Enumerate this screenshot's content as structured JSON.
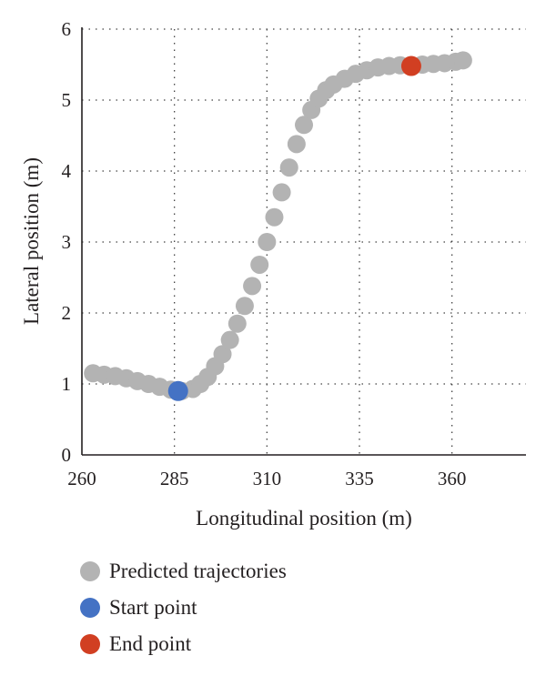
{
  "chart_data": {
    "type": "scatter",
    "xlabel": "Longitudinal position (m)",
    "ylabel": "Lateral position (m)",
    "xlim": [
      260,
      380
    ],
    "ylim": [
      0,
      6
    ],
    "xticks": [
      260,
      285,
      310,
      335,
      360
    ],
    "yticks": [
      0,
      1,
      2,
      3,
      4,
      5,
      6
    ],
    "grid": "dotted",
    "legend_position": "bottom",
    "series": [
      {
        "name": "Predicted trajectories",
        "color": "#b3b3b3",
        "marker": "circle",
        "points": [
          [
            263,
            1.15
          ],
          [
            266,
            1.13
          ],
          [
            269,
            1.11
          ],
          [
            272,
            1.08
          ],
          [
            275,
            1.04
          ],
          [
            278,
            1.0
          ],
          [
            281,
            0.96
          ],
          [
            284,
            0.92
          ],
          [
            287,
            0.9
          ],
          [
            290,
            0.93
          ],
          [
            292,
            1.0
          ],
          [
            294,
            1.1
          ],
          [
            296,
            1.25
          ],
          [
            298,
            1.42
          ],
          [
            300,
            1.62
          ],
          [
            302,
            1.85
          ],
          [
            304,
            2.1
          ],
          [
            306,
            2.38
          ],
          [
            308,
            2.68
          ],
          [
            310,
            3.0
          ],
          [
            312,
            3.35
          ],
          [
            314,
            3.7
          ],
          [
            316,
            4.05
          ],
          [
            318,
            4.38
          ],
          [
            320,
            4.65
          ],
          [
            322,
            4.86
          ],
          [
            324,
            5.02
          ],
          [
            326,
            5.14
          ],
          [
            328,
            5.22
          ],
          [
            331,
            5.3
          ],
          [
            334,
            5.37
          ],
          [
            337,
            5.42
          ],
          [
            340,
            5.46
          ],
          [
            343,
            5.48
          ],
          [
            346,
            5.49
          ],
          [
            349,
            5.49
          ],
          [
            352,
            5.5
          ],
          [
            355,
            5.51
          ],
          [
            358,
            5.52
          ],
          [
            361,
            5.54
          ],
          [
            363,
            5.56
          ]
        ]
      },
      {
        "name": "Start point",
        "color": "#4472c4",
        "marker": "circle",
        "points": [
          [
            286,
            0.9
          ]
        ]
      },
      {
        "name": "End point",
        "color": "#d13f22",
        "marker": "circle",
        "points": [
          [
            349,
            5.48
          ]
        ]
      }
    ]
  }
}
